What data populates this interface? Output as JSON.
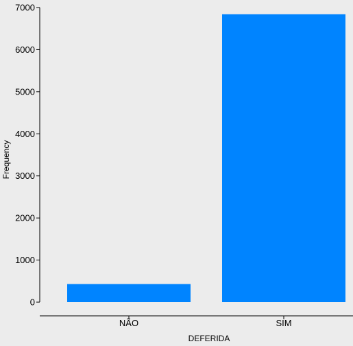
{
  "colors": {
    "background": "#ececec",
    "bar": "#0084ff",
    "axis": "#000000"
  },
  "chart_data": {
    "type": "bar",
    "categories": [
      "NÃO",
      "SIM"
    ],
    "values": [
      430,
      6840
    ],
    "title": "",
    "xlabel": "DEFERIDA",
    "ylabel": "Frequency",
    "ylim": [
      0,
      7000
    ],
    "yticks": [
      0,
      1000,
      2000,
      3000,
      4000,
      5000,
      6000,
      7000
    ],
    "grid": false
  }
}
